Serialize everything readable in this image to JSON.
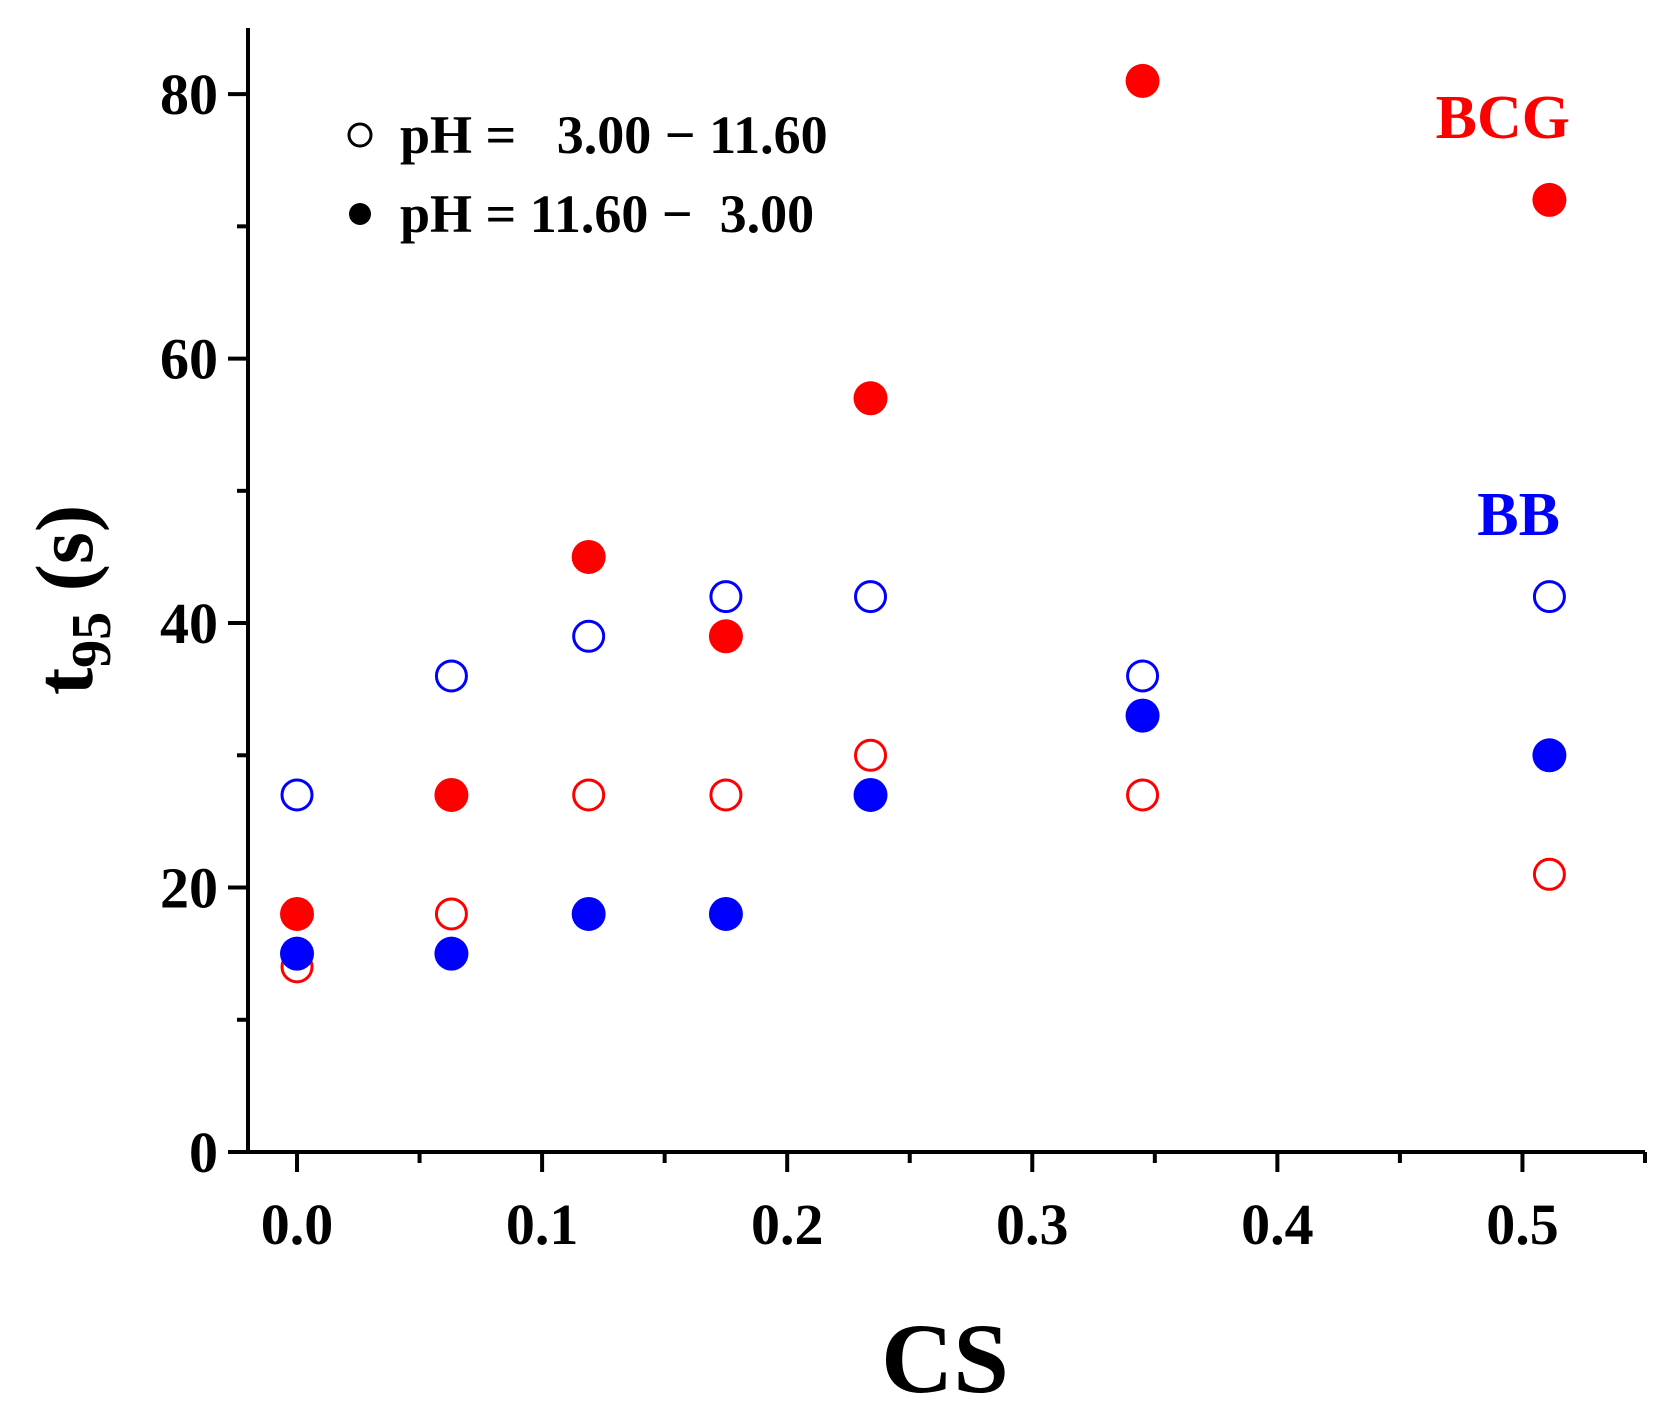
{
  "chart_data": {
    "type": "scatter",
    "title": "",
    "xlabel": "CS",
    "ylabel_main": "t",
    "ylabel_sub": "95",
    "ylabel_unit": " (s)",
    "xlim": [
      -0.02,
      0.55
    ],
    "ylim": [
      0,
      85
    ],
    "xticks": [
      0.0,
      0.1,
      0.2,
      0.3,
      0.4,
      0.5
    ],
    "xtick_labels": [
      "0.0",
      "0.1",
      "0.2",
      "0.3",
      "0.4",
      "0.5"
    ],
    "xminor": [
      0.05,
      0.15,
      0.25,
      0.35,
      0.45,
      0.55
    ],
    "yticks": [
      0,
      20,
      40,
      60,
      80
    ],
    "ytick_labels": [
      "0",
      "20",
      "40",
      "60",
      "80"
    ],
    "yminor": [
      10,
      30,
      50,
      70
    ],
    "grid": false,
    "legend": {
      "position": "top-left",
      "entries": [
        {
          "marker": "open-circle",
          "label": "pH =   3.00 − 11.60"
        },
        {
          "marker": "filled-circle",
          "label": "pH = 11.60 −  3.00"
        }
      ]
    },
    "annotations": [
      {
        "text": "BCG",
        "color": "#ff0000"
      },
      {
        "text": "BB",
        "color": "#0000ff"
      }
    ],
    "series": [
      {
        "name": "BCG pH 3.00-11.60",
        "color": "#ff0000",
        "filled": false,
        "x": [
          0.0,
          0.063,
          0.119,
          0.175,
          0.234,
          0.345,
          0.511
        ],
        "y": [
          14,
          18,
          27,
          27,
          30,
          27,
          21
        ]
      },
      {
        "name": "BCG pH 11.60-3.00",
        "color": "#ff0000",
        "filled": true,
        "x": [
          0.0,
          0.063,
          0.119,
          0.175,
          0.234,
          0.345,
          0.511
        ],
        "y": [
          18,
          27,
          45,
          39,
          57,
          81,
          72
        ]
      },
      {
        "name": "BB pH 3.00-11.60",
        "color": "#0000ff",
        "filled": false,
        "x": [
          0.0,
          0.063,
          0.119,
          0.175,
          0.234,
          0.345,
          0.511
        ],
        "y": [
          27,
          36,
          39,
          42,
          42,
          36,
          42
        ]
      },
      {
        "name": "BB pH 11.60-3.00",
        "color": "#0000ff",
        "filled": true,
        "x": [
          0.0,
          0.063,
          0.119,
          0.175,
          0.234,
          0.345,
          0.511
        ],
        "y": [
          15,
          15,
          18,
          18,
          27,
          33,
          30
        ]
      }
    ]
  }
}
